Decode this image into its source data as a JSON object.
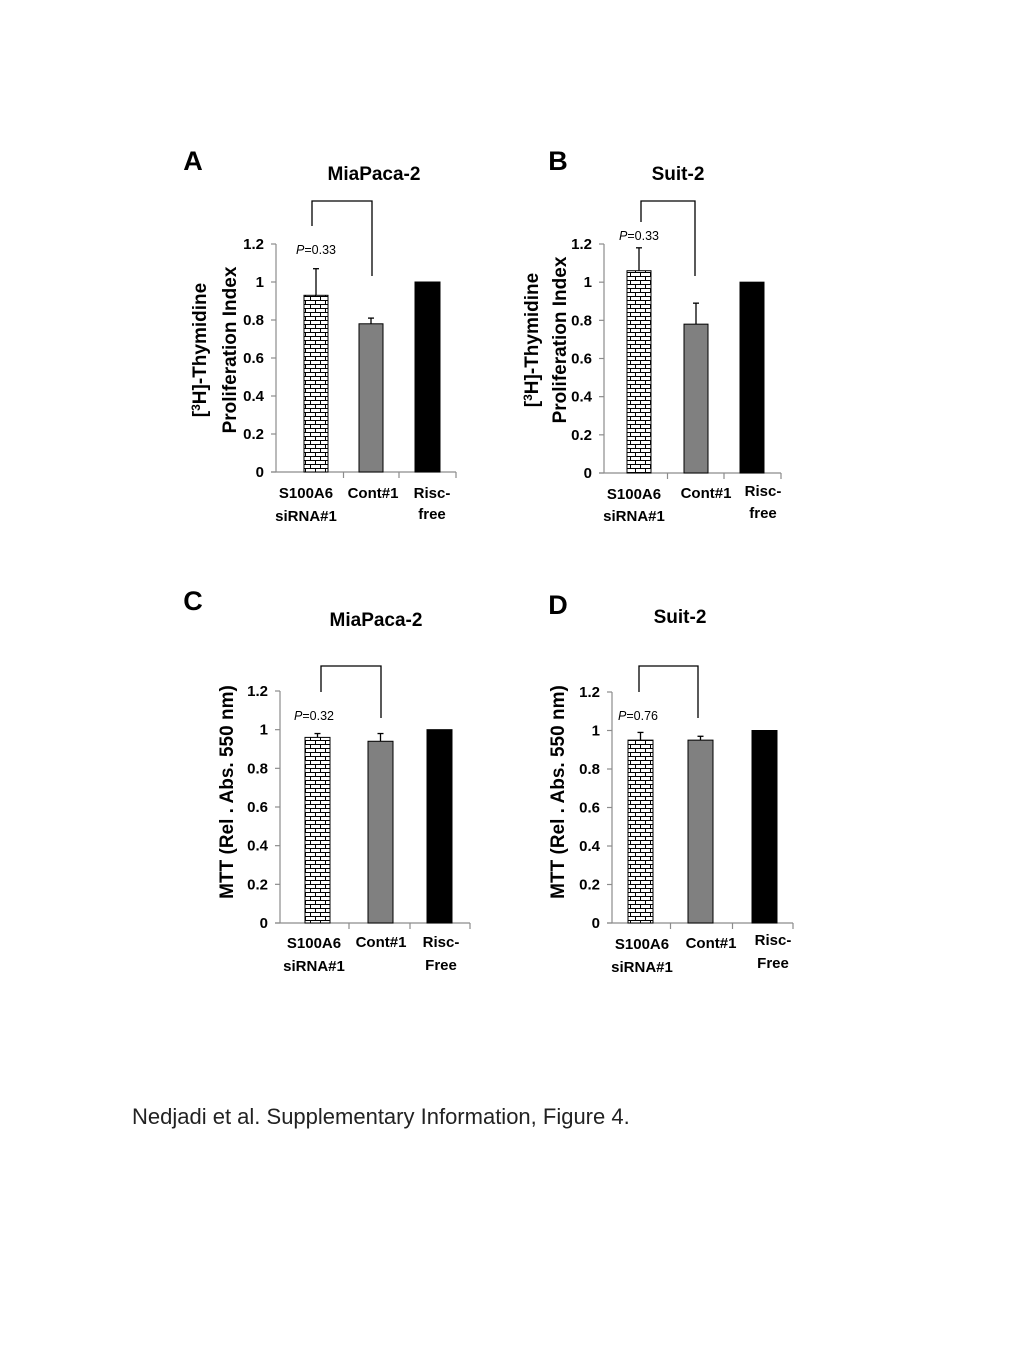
{
  "caption": "Nedjadi et al. Supplementary Information, Figure 4.",
  "colors": {
    "siRNA": "#ffffff",
    "cont": "#808080",
    "risc": "#000000",
    "axis": "#8c8c8c"
  },
  "chart_data": [
    {
      "panel": "A",
      "type": "bar",
      "title": "MiaPaca-2",
      "ylabel_lines": [
        "[3H]-Thymidine",
        "Proliferation Index"
      ],
      "categories": [
        [
          "S100A6",
          "siRNA#1"
        ],
        [
          "Cont#1"
        ],
        [
          "Risc-",
          "free"
        ]
      ],
      "values": [
        0.93,
        0.78,
        1.0
      ],
      "errors": [
        0.14,
        0.03,
        0
      ],
      "ylim": [
        0,
        1.2
      ],
      "yticks": [
        "0",
        "0.2",
        "0.4",
        "0.6",
        "0.8",
        "1",
        "1.2"
      ],
      "pvalue": "=0.33",
      "legend": "none",
      "grid": false
    },
    {
      "panel": "B",
      "type": "bar",
      "title": "Suit-2",
      "ylabel_lines": [
        "[3H]-Thymidine",
        "Proliferation Index"
      ],
      "categories": [
        [
          "S100A6",
          "siRNA#1"
        ],
        [
          "Cont#1"
        ],
        [
          "Risc-",
          "free"
        ]
      ],
      "values": [
        1.06,
        0.78,
        1.0
      ],
      "errors": [
        0.12,
        0.11,
        0
      ],
      "ylim": [
        0,
        1.2
      ],
      "yticks": [
        "0",
        "0.2",
        "0.4",
        "0.6",
        "0.8",
        "1",
        "1.2"
      ],
      "pvalue": "=0.33",
      "legend": "none",
      "grid": false
    },
    {
      "panel": "C",
      "type": "bar",
      "title": "MiaPaca-2",
      "ylabel_lines": [
        "MTT (Rel . Abs. 550 nm)"
      ],
      "categories": [
        [
          "S100A6",
          "siRNA#1"
        ],
        [
          "Cont#1"
        ],
        [
          "Risc-",
          "Free"
        ]
      ],
      "values": [
        0.96,
        0.94,
        1.0
      ],
      "errors": [
        0.02,
        0.04,
        0
      ],
      "ylim": [
        0,
        1.2
      ],
      "yticks": [
        "0",
        "0.2",
        "0.4",
        "0.6",
        "0.8",
        "1",
        "1.2"
      ],
      "pvalue": "=0.32",
      "legend": "none",
      "grid": false
    },
    {
      "panel": "D",
      "type": "bar",
      "title": "Suit-2",
      "ylabel_lines": [
        "MTT (Rel . Abs. 550 nm)"
      ],
      "categories": [
        [
          "S100A6",
          "siRNA#1"
        ],
        [
          "Cont#1"
        ],
        [
          "Risc-",
          "Free"
        ]
      ],
      "values": [
        0.95,
        0.95,
        1.0
      ],
      "errors": [
        0.04,
        0.02,
        0
      ],
      "ylim": [
        0,
        1.2
      ],
      "yticks": [
        "0",
        "0.2",
        "0.4",
        "0.6",
        "0.8",
        "1",
        "1.2"
      ],
      "pvalue": "=0.76",
      "legend": "none",
      "grid": false
    }
  ]
}
